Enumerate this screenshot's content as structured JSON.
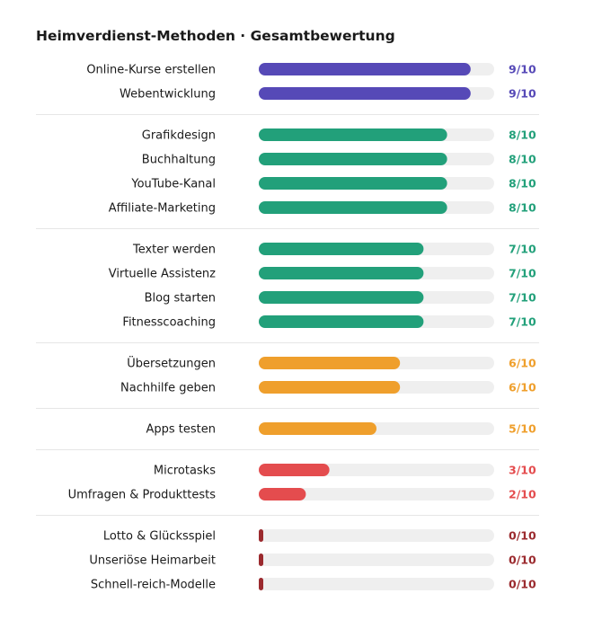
{
  "chart_data": {
    "type": "bar",
    "orientation": "horizontal",
    "title": "Heimverdienst-Methoden · Gesamtbewertung",
    "xlim": [
      0,
      10
    ],
    "grid": false,
    "legend": "none",
    "colors": {
      "9": "#5649b7",
      "8": "#22a07a",
      "7": "#22a07a",
      "6": "#ef9f2c",
      "5": "#ef9f2c",
      "3": "#e44c4e",
      "2": "#e44c4e",
      "0": "#9b2a2e",
      "track": "#efefef",
      "divider": "#e6e6e6"
    },
    "groups": [
      {
        "items": [
          {
            "label": "Online-Kurse erstellen",
            "value": 9,
            "value_label": "9/10"
          },
          {
            "label": "Webentwicklung",
            "value": 9,
            "value_label": "9/10"
          }
        ]
      },
      {
        "items": [
          {
            "label": "Grafikdesign",
            "value": 8,
            "value_label": "8/10"
          },
          {
            "label": "Buchhaltung",
            "value": 8,
            "value_label": "8/10"
          },
          {
            "label": "YouTube-Kanal",
            "value": 8,
            "value_label": "8/10"
          },
          {
            "label": "Affiliate-Marketing",
            "value": 8,
            "value_label": "8/10"
          }
        ]
      },
      {
        "items": [
          {
            "label": "Texter werden",
            "value": 7,
            "value_label": "7/10"
          },
          {
            "label": "Virtuelle Assistenz",
            "value": 7,
            "value_label": "7/10"
          },
          {
            "label": "Blog starten",
            "value": 7,
            "value_label": "7/10"
          },
          {
            "label": "Fitnesscoaching",
            "value": 7,
            "value_label": "7/10"
          }
        ]
      },
      {
        "items": [
          {
            "label": "Übersetzungen",
            "value": 6,
            "value_label": "6/10"
          },
          {
            "label": "Nachhilfe geben",
            "value": 6,
            "value_label": "6/10"
          }
        ]
      },
      {
        "items": [
          {
            "label": "Apps testen",
            "value": 5,
            "value_label": "5/10"
          }
        ]
      },
      {
        "items": [
          {
            "label": "Microtasks",
            "value": 3,
            "value_label": "3/10"
          },
          {
            "label": "Umfragen & Produkttests",
            "value": 2,
            "value_label": "2/10"
          }
        ]
      },
      {
        "items": [
          {
            "label": "Lotto & Glücksspiel",
            "value": 0,
            "value_label": "0/10"
          },
          {
            "label": "Unseriöse Heimarbeit",
            "value": 0,
            "value_label": "0/10"
          },
          {
            "label": "Schnell-reich-Modelle",
            "value": 0,
            "value_label": "0/10"
          }
        ]
      }
    ]
  }
}
